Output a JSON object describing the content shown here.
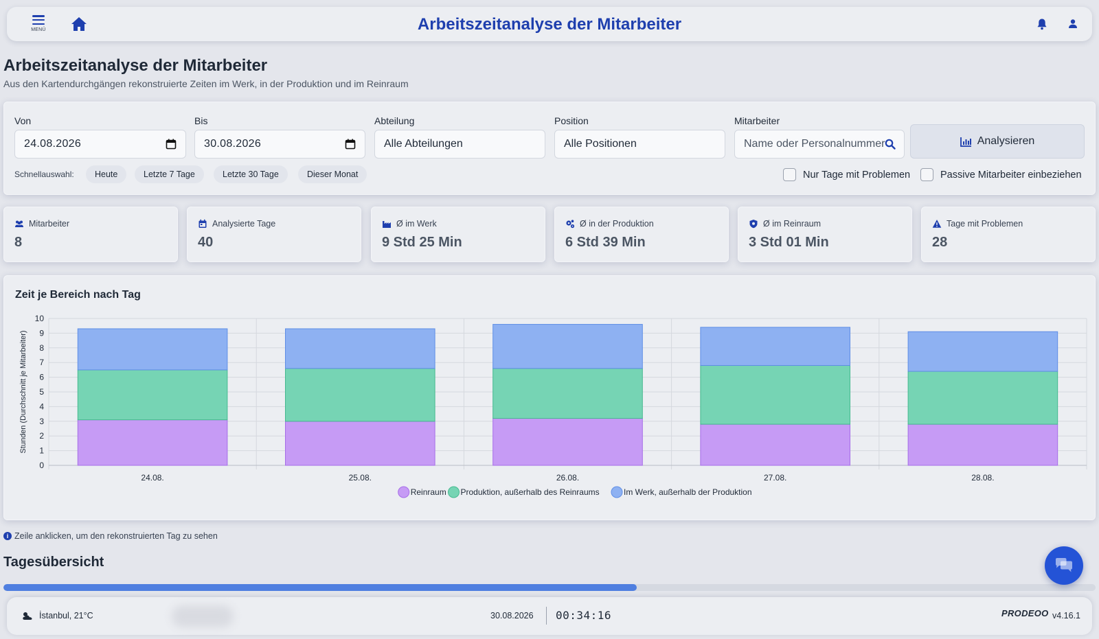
{
  "topbar": {
    "menu_label": "MENÜ",
    "title": "Arbeitszeitanalyse der Mitarbeiter"
  },
  "header": {
    "title": "Arbeitszeitanalyse der Mitarbeiter",
    "subtitle": "Aus den Kartendurchgängen rekonstruierte Zeiten im Werk, in der Produktion und im Reinraum"
  },
  "filters": {
    "from_label": "Von",
    "from_value": "24.08.2026",
    "to_label": "Bis",
    "to_value": "30.08.2026",
    "department_label": "Abteilung",
    "department_value": "Alle Abteilungen",
    "position_label": "Position",
    "position_value": "Alle Positionen",
    "employee_label": "Mitarbeiter",
    "employee_placeholder": "Name oder Personalnummer",
    "analyze_label": "Analysieren",
    "quick_label": "Schnellauswahl:",
    "quick_options": [
      "Heute",
      "Letzte 7 Tage",
      "Letzte 30 Tage",
      "Dieser Monat"
    ],
    "problems_only_label": "Nur Tage mit Problemen",
    "include_passive_label": "Passive Mitarbeiter einbeziehen"
  },
  "stats": [
    {
      "label": "Mitarbeiter",
      "value": "8",
      "icon": "users-icon"
    },
    {
      "label": "Analysierte Tage",
      "value": "40",
      "icon": "calendar-icon"
    },
    {
      "label": "Ø im Werk",
      "value": "9 Std 25 Min",
      "icon": "factory-icon"
    },
    {
      "label": "Ø in der Produktion",
      "value": "6 Std 39 Min",
      "icon": "gears-icon"
    },
    {
      "label": "Ø im Reinraum",
      "value": "3 Std 01 Min",
      "icon": "shield-icon"
    },
    {
      "label": "Tage mit Problemen",
      "value": "28",
      "icon": "warning-icon"
    }
  ],
  "chart_title": "Zeit je Bereich nach Tag",
  "chart_data": {
    "type": "bar",
    "stacked": true,
    "categories": [
      "24.08.",
      "25.08.",
      "26.08.",
      "27.08.",
      "28.08."
    ],
    "series": [
      {
        "name": "Reinraum",
        "values": [
          3.1,
          3.0,
          3.2,
          2.8,
          2.8
        ],
        "color": "#c69bf5"
      },
      {
        "name": "Produktion, außerhalb des Reinraums",
        "values": [
          3.4,
          3.6,
          3.4,
          4.0,
          3.6
        ],
        "color": "#76d4b4"
      },
      {
        "name": "Im Werk, außerhalb der Produktion",
        "values": [
          2.8,
          2.7,
          3.0,
          2.6,
          2.7
        ],
        "color": "#8eb1f2"
      }
    ],
    "ylabel": "Stunden (Durchschnitt je Mitarbeiter)",
    "ylim": [
      0,
      10
    ],
    "yticks": [
      0,
      1,
      2,
      3,
      4,
      5,
      6,
      7,
      8,
      9,
      10
    ],
    "grid": true,
    "legend": "bottom"
  },
  "hint": "Zeile anklicken, um den rekonstruierten Tag zu sehen",
  "section_title": "Tagesübersicht",
  "progress": 0.58,
  "footer": {
    "weather": "İstanbul, 21°C",
    "date": "30.08.2026",
    "time": "00:34:16",
    "logo": "PRODEOO",
    "version": "v4.16.1"
  },
  "colors": {
    "accent": "#1e3fae",
    "background": "#e4e6ec",
    "card": "#eceef2"
  }
}
